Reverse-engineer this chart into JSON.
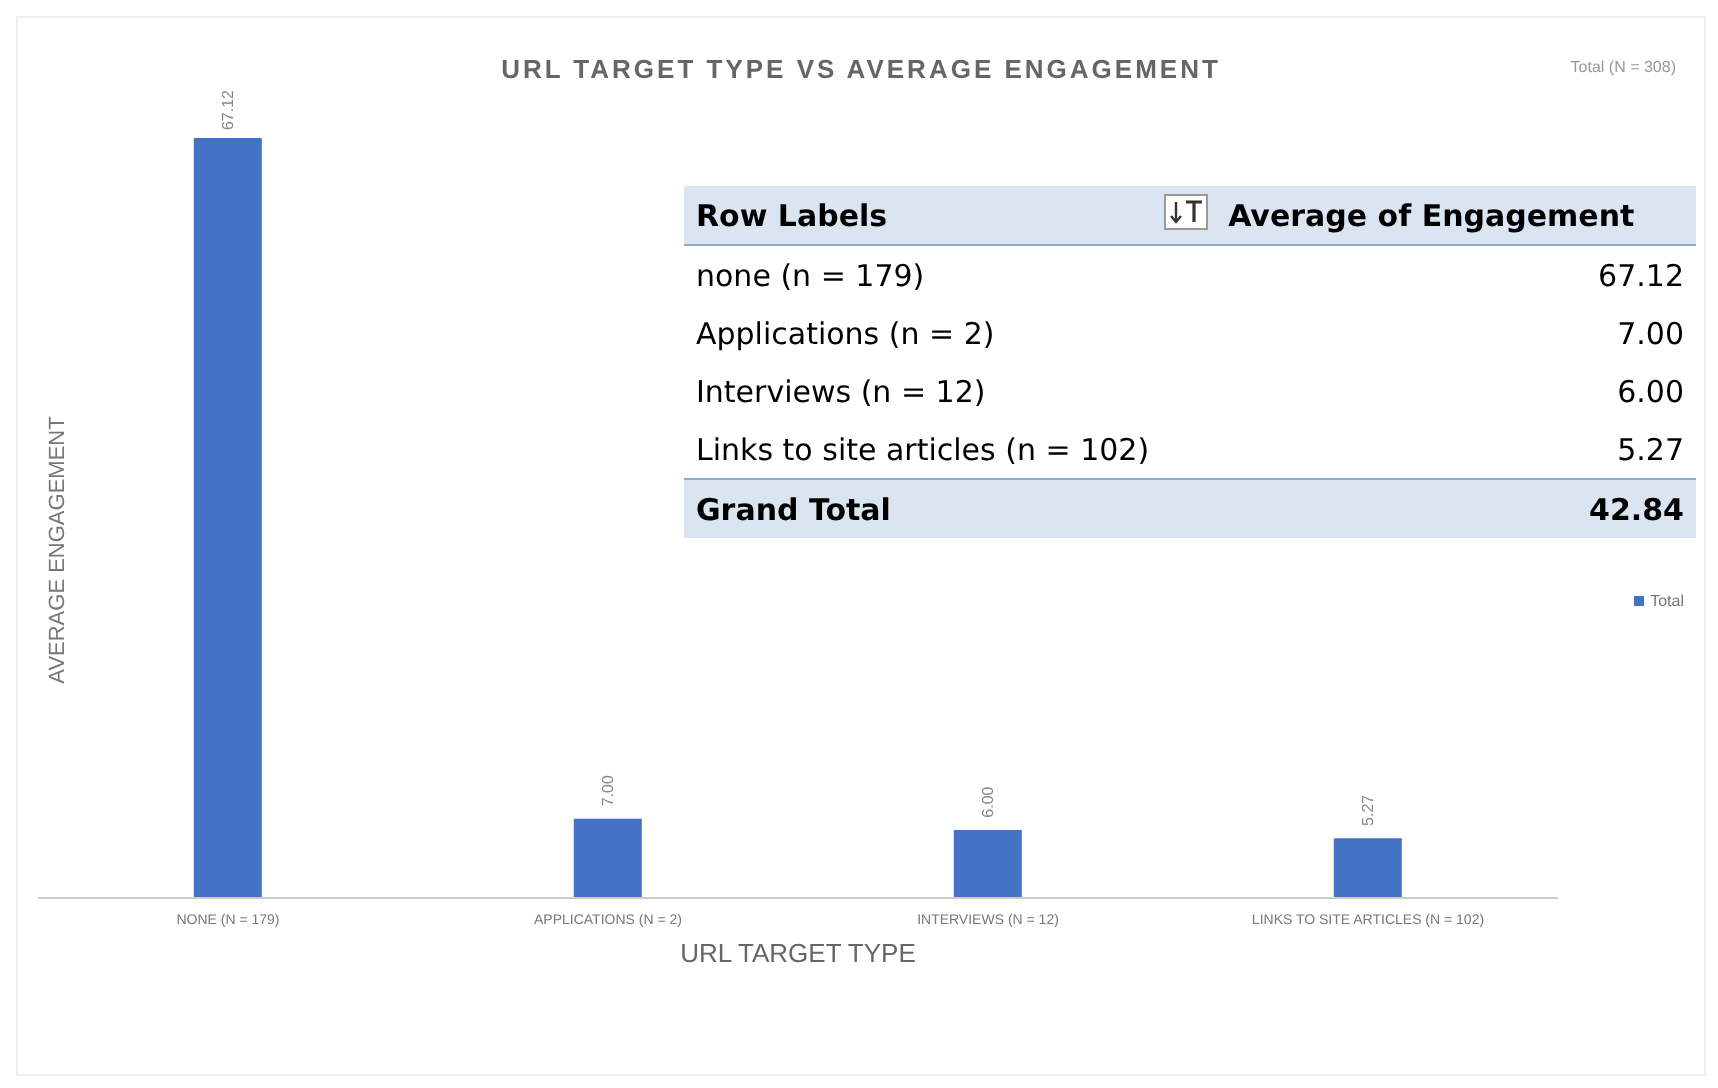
{
  "chart_data": {
    "type": "bar",
    "title": "URL TARGET TYPE VS AVERAGE ENGAGEMENT",
    "xlabel": "URL TARGET TYPE",
    "ylabel": "AVERAGE ENGAGEMENT",
    "categories": [
      "NONE (N = 179)",
      "APPLICATIONS (N = 2)",
      "INTERVIEWS (N = 12)",
      "LINKS TO SITE ARTICLES (N = 102)"
    ],
    "series": [
      {
        "name": "Total",
        "color": "#4472c4",
        "values": [
          67.12,
          7.0,
          6.0,
          5.27
        ],
        "value_labels": [
          "67.12",
          "7.00",
          "6.00",
          "5.27"
        ]
      }
    ],
    "legend": "right",
    "annotations": [
      "Total (N = 308)",
      "Row Labels",
      "Average of Engagement",
      "none (n = 179)",
      "67.12",
      "Applications (n = 2)",
      "7.00",
      "Interviews (n = 12)",
      "6.00",
      "Links to site articles (n = 102)",
      "5.27",
      "Grand Total",
      "42.84"
    ]
  }
}
